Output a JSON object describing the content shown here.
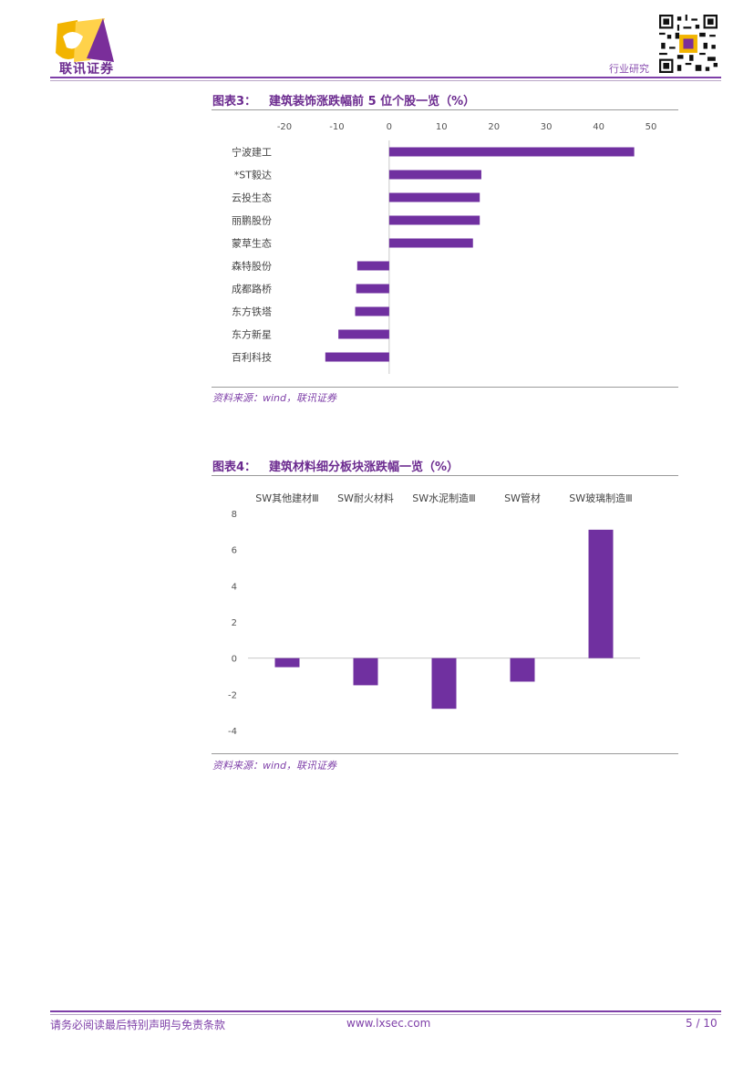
{
  "header": {
    "logo_text": "联讯证券",
    "category": "行业研究"
  },
  "figure3": {
    "number": "图表3：",
    "title": "建筑装饰涨跌幅前 5 位个股一览（%）",
    "source": "资料来源：wind，联讯证券",
    "chart_data": {
      "type": "bar",
      "orientation": "horizontal",
      "categories": [
        "宁波建工",
        "*ST毅达",
        "云投生态",
        "丽鹏股份",
        "蒙草生态",
        "森特股份",
        "成都路桥",
        "东方铁塔",
        "东方新星",
        "百利科技"
      ],
      "values": [
        46.8,
        17.6,
        17.3,
        17.3,
        16.0,
        -6.1,
        -6.3,
        -6.5,
        -9.7,
        -12.2
      ],
      "ticks": [
        -20,
        -10,
        0,
        10,
        20,
        30,
        40,
        50
      ],
      "xlim": [
        -20,
        50
      ],
      "color": "#7030a0",
      "grid": false
    }
  },
  "figure4": {
    "number": "图表4：",
    "title": "建筑材料细分板块涨跌幅一览（%）",
    "source": "资料来源：wind，联讯证券",
    "chart_data": {
      "type": "bar",
      "categories": [
        "SW其他建材Ⅲ",
        "SW耐火材料",
        "SW水泥制造Ⅲ",
        "SW管材",
        "SW玻璃制造Ⅲ"
      ],
      "values": [
        -0.5,
        -1.5,
        -2.8,
        -1.3,
        7.1
      ],
      "ticks": [
        -4,
        -2,
        0,
        2,
        4,
        6,
        8
      ],
      "ylim": [
        -4,
        8
      ],
      "category_labels_position": "top",
      "color": "#7030a0",
      "grid": false
    }
  },
  "footer": {
    "disclaimer": "请务必阅读最后特别声明与免责条款",
    "website": "www.lxsec.com",
    "page": "5 / 10"
  }
}
